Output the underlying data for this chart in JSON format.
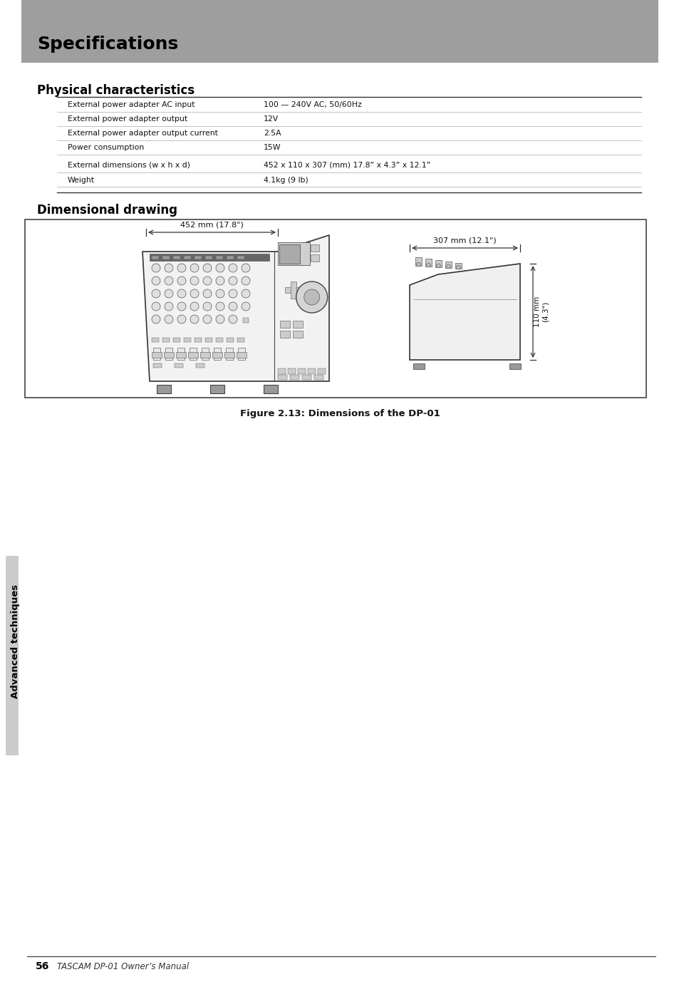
{
  "page_bg": "#ffffff",
  "header_bg": "#9e9e9e",
  "header_text": "Specifications",
  "header_text_color": "#000000",
  "section1_title": "Physical characteristics",
  "section2_title": "Dimensional drawing",
  "figure_caption": "Figure 2.13: Dimensions of the DP-01",
  "table_rows": [
    [
      "External power adapter AC input",
      "100 — 240V AC, 50/60Hz"
    ],
    [
      "External power adapter output",
      "12V"
    ],
    [
      "External power adapter output current",
      "2.5A"
    ],
    [
      "Power consumption",
      "15W"
    ],
    [
      "External dimensions (w x h x d)",
      "452 x 110 x 307 (mm) 17.8” x 4.3” x 12.1”"
    ],
    [
      "Weight",
      "4.1kg (9 lb)"
    ]
  ],
  "sidebar_text": "Advanced techniques",
  "page_number": "56",
  "page_footer": "TASCAM DP-01 Owner’s Manual",
  "dim_width_label": "452 mm (17.8\")",
  "dim_depth_label": "307 mm (12.1\")",
  "dim_height_label": "110 mm\n(4.3\")"
}
